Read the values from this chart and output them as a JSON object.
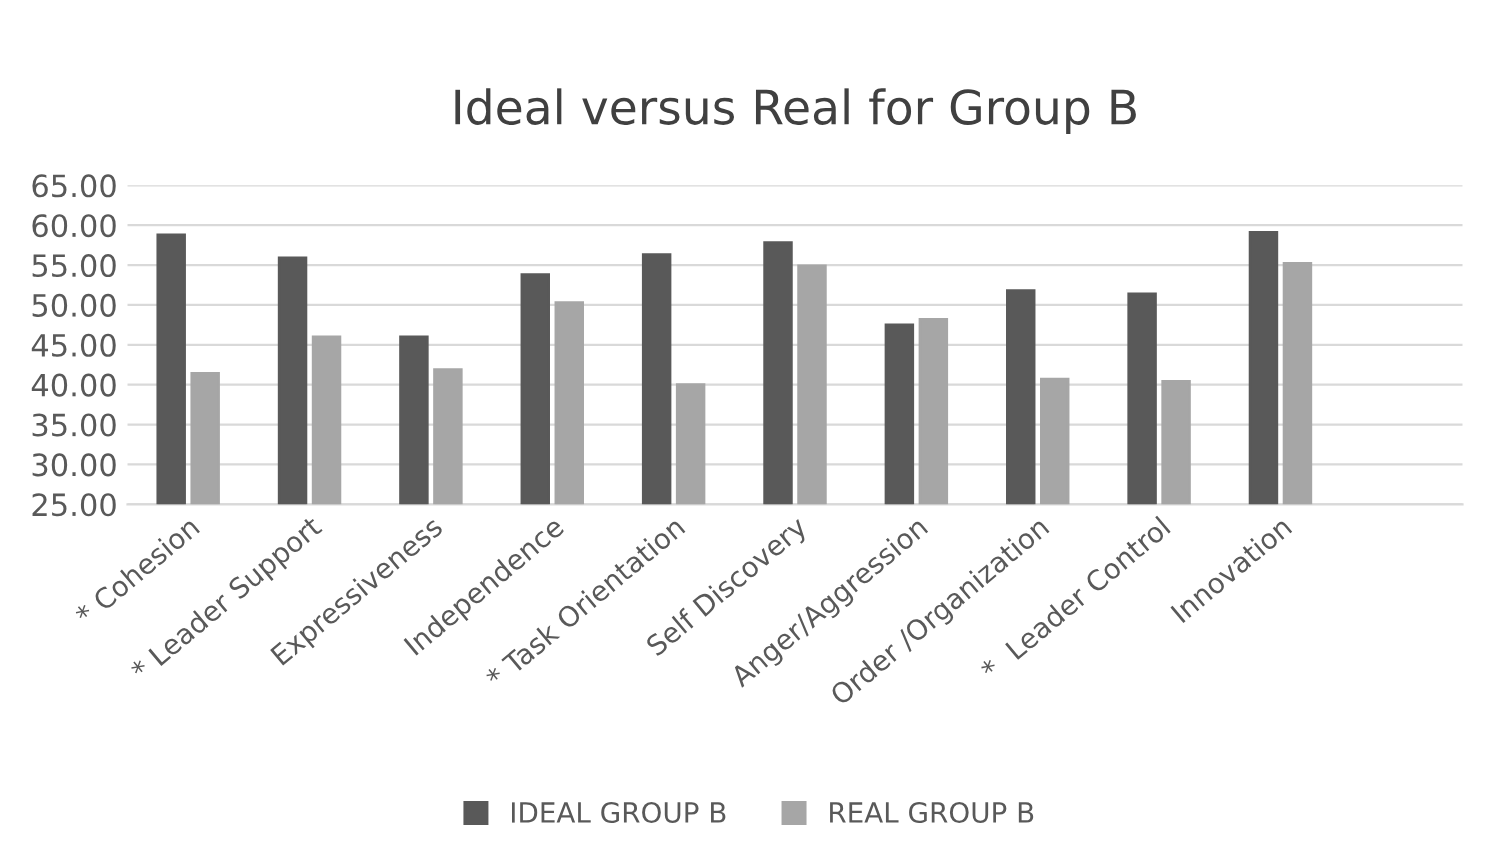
{
  "chart_data": {
    "type": "bar",
    "title": "Ideal versus Real for Group B",
    "categories": [
      "* Cohesion",
      "* Leader Support",
      "Expressiveness",
      "Independence",
      "* Task Orientation",
      "Self Discovery",
      "Anger/Aggression",
      "Order /Organization",
      "*  Leader Control",
      "Innovation",
      null
    ],
    "series": [
      {
        "name": "IDEAL GROUP B",
        "color": "#595959",
        "values": [
          58.8,
          55.9,
          46.0,
          53.8,
          56.3,
          57.8,
          47.5,
          51.8,
          51.4,
          59.1,
          null
        ]
      },
      {
        "name": "REAL GROUP B",
        "color": "#a6a6a6",
        "values": [
          41.4,
          46.0,
          41.9,
          50.3,
          40.0,
          54.9,
          48.2,
          40.7,
          40.4,
          55.2,
          null
        ]
      }
    ],
    "ylim": [
      25,
      65
    ],
    "yticks": [
      {
        "value": 25,
        "label": "25.00"
      },
      {
        "value": 30,
        "label": "30.00"
      },
      {
        "value": 35,
        "label": "35.00"
      },
      {
        "value": 40,
        "label": "40.00"
      },
      {
        "value": 45,
        "label": "45.00"
      },
      {
        "value": 50,
        "label": "50.00"
      },
      {
        "value": 55,
        "label": "55.00"
      },
      {
        "value": 60,
        "label": "60.00"
      },
      {
        "value": 65,
        "label": "65.00"
      }
    ],
    "grid": "y",
    "legend": "bottom"
  }
}
